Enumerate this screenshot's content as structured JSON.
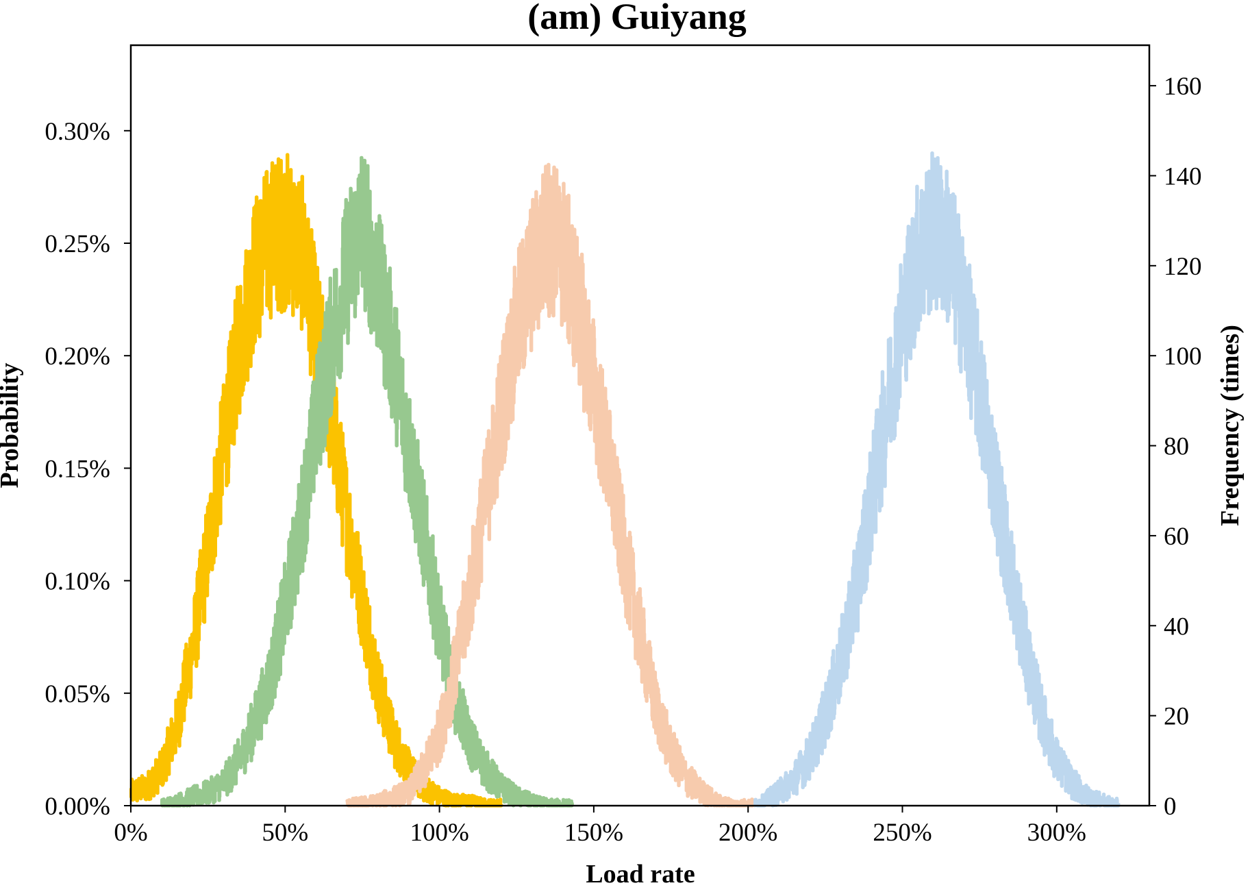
{
  "chart_data": {
    "type": "line",
    "title": "(am) Guiyang",
    "xlabel": "Load rate",
    "ylabel": "Probability",
    "y2label": "Frequency (times)",
    "xlim": [
      0,
      330
    ],
    "ylim": [
      0,
      0.00338
    ],
    "y2lim": [
      0,
      169
    ],
    "x_ticks": [
      0,
      50,
      100,
      150,
      200,
      250,
      300
    ],
    "x_tick_labels": [
      "0%",
      "50%",
      "100%",
      "150%",
      "200%",
      "250%",
      "300%"
    ],
    "y_ticks": [
      0,
      0.0005,
      0.001,
      0.0015,
      0.002,
      0.0025,
      0.003
    ],
    "y_tick_labels": [
      "0.00%",
      "0.05%",
      "0.10%",
      "0.15%",
      "0.20%",
      "0.25%",
      "0.30%"
    ],
    "y2_ticks": [
      0,
      20,
      40,
      60,
      80,
      100,
      120,
      140,
      160
    ],
    "y2_tick_labels": [
      "0",
      "20",
      "40",
      "60",
      "80",
      "100",
      "120",
      "140",
      "160"
    ],
    "grid": false,
    "legend": "none",
    "series": [
      {
        "color": "#fbc200",
        "x": [
          0,
          5,
          10,
          15,
          20,
          25,
          30,
          35,
          40,
          45,
          50,
          55,
          60,
          65,
          70,
          75,
          80,
          85,
          90,
          95,
          100,
          105,
          110,
          115,
          120
        ],
        "values": [
          3,
          4,
          8,
          18,
          35,
          57,
          80,
          102,
          118,
          126,
          128,
          124,
          106,
          86,
          64,
          45,
          27,
          15,
          8,
          4,
          2,
          1,
          1,
          0,
          0
        ]
      },
      {
        "color": "#97c88f",
        "x": [
          10,
          15,
          20,
          25,
          30,
          35,
          40,
          45,
          50,
          55,
          60,
          65,
          70,
          75,
          80,
          85,
          90,
          95,
          100,
          105,
          110,
          115,
          120,
          125,
          130,
          135,
          140,
          143
        ],
        "values": [
          0,
          1,
          2,
          3,
          5,
          10,
          18,
          28,
          44,
          62,
          85,
          103,
          119,
          130,
          116,
          100,
          80,
          60,
          40,
          24,
          14,
          8,
          4,
          2,
          1,
          0,
          0,
          0
        ]
      },
      {
        "color": "#f7cbad",
        "x": [
          70,
          80,
          90,
          95,
          100,
          105,
          110,
          115,
          120,
          125,
          130,
          135,
          140,
          145,
          150,
          155,
          160,
          165,
          170,
          175,
          180,
          185,
          190,
          195,
          200,
          202
        ],
        "values": [
          0,
          1,
          3,
          8,
          16,
          30,
          48,
          68,
          88,
          106,
          118,
          127,
          123,
          110,
          93,
          75,
          55,
          38,
          22,
          12,
          6,
          3,
          1,
          0,
          0,
          0
        ]
      },
      {
        "color": "#bdd7ee",
        "x": [
          202,
          205,
          210,
          215,
          220,
          225,
          230,
          235,
          240,
          245,
          250,
          255,
          260,
          265,
          270,
          275,
          280,
          285,
          290,
          295,
          300,
          305,
          310,
          315,
          320
        ],
        "values": [
          0,
          1,
          3,
          6,
          11,
          20,
          32,
          48,
          68,
          88,
          108,
          122,
          128,
          124,
          110,
          92,
          72,
          52,
          34,
          20,
          10,
          5,
          2,
          1,
          0
        ]
      }
    ]
  }
}
